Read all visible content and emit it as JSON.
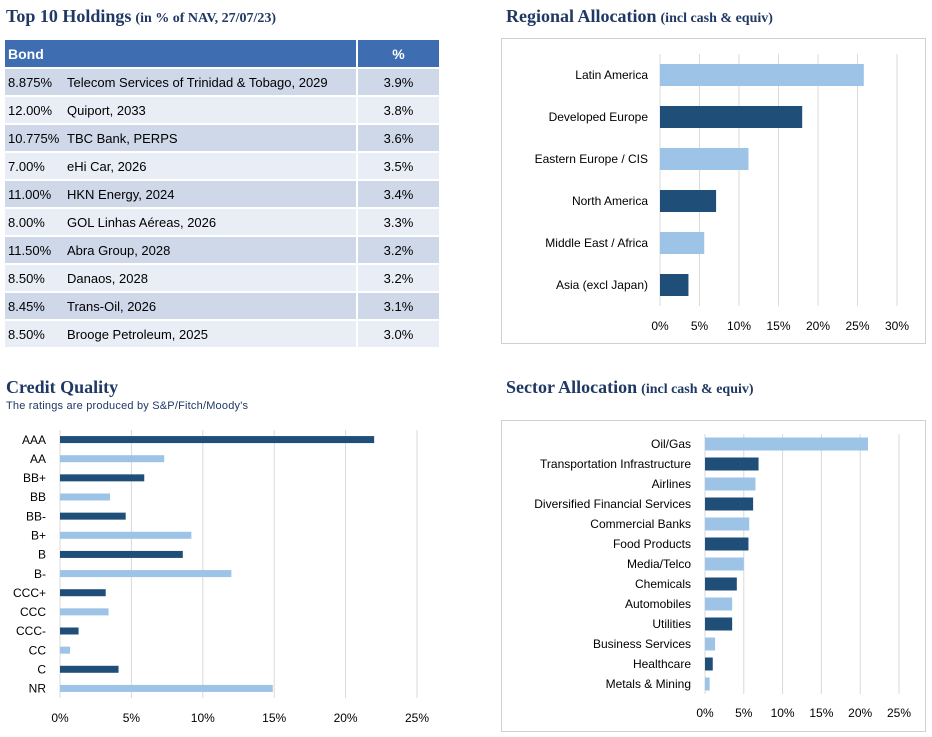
{
  "holdings": {
    "title": "Top 10 Holdings",
    "subtitle": "(in % of NAV, 27/07/23)",
    "header_bond": "Bond",
    "header_pct": "%",
    "rows": [
      {
        "rate": "8.875%",
        "name": "Telecom Services of Trinidad & Tobago, 2029",
        "pct": "3.9%"
      },
      {
        "rate": "12.00%",
        "name": "Quiport, 2033",
        "pct": "3.8%"
      },
      {
        "rate": "10.775%",
        "name": "TBC Bank, PERPS",
        "pct": "3.6%"
      },
      {
        "rate": "7.00%",
        "name": "eHi Car, 2026",
        "pct": "3.5%"
      },
      {
        "rate": "11.00%",
        "name": "HKN Energy, 2024",
        "pct": "3.4%"
      },
      {
        "rate": "8.00%",
        "name": "GOL Linhas Aéreas, 2026",
        "pct": "3.3%"
      },
      {
        "rate": "11.50%",
        "name": "Abra Group, 2028",
        "pct": "3.2%"
      },
      {
        "rate": "8.50%",
        "name": "Danaos, 2028",
        "pct": "3.2%"
      },
      {
        "rate": "8.45%",
        "name": "Trans-Oil, 2026",
        "pct": "3.1%"
      },
      {
        "rate": "8.50%",
        "name": "Brooge Petroleum, 2025",
        "pct": "3.0%"
      }
    ]
  },
  "regional": {
    "title": "Regional Allocation",
    "subtitle": "(incl cash & equiv)"
  },
  "credit": {
    "title": "Credit Quality",
    "note": "The ratings are produced by S&P/Fitch/Moody's"
  },
  "sector": {
    "title": "Sector Allocation",
    "subtitle": "(incl cash & equiv)"
  },
  "colors": {
    "title": "#1f3864",
    "light_bar": "#9dc3e6",
    "dark_bar": "#1f4e79",
    "table_header": "#3f6db1",
    "grid": "#d9d9d9"
  },
  "chart_data": [
    {
      "id": "regional",
      "type": "bar",
      "orientation": "horizontal",
      "categories": [
        "Latin America",
        "Developed Europe",
        "Eastern Europe / CIS",
        "North America",
        "Middle East / Africa",
        "Asia (excl Japan)"
      ],
      "values": [
        25.8,
        18.0,
        11.2,
        7.1,
        5.6,
        3.6
      ],
      "xlim": [
        0,
        30
      ],
      "xticks": [
        "0%",
        "5%",
        "10%",
        "15%",
        "20%",
        "25%",
        "30%"
      ],
      "grid": true,
      "colors": [
        "#9dc3e6",
        "#1f4e79",
        "#9dc3e6",
        "#1f4e79",
        "#9dc3e6",
        "#1f4e79"
      ]
    },
    {
      "id": "credit",
      "type": "bar",
      "orientation": "horizontal",
      "categories": [
        "AAA",
        "AA",
        "BB+",
        "BB",
        "BB-",
        "B+",
        "B",
        "B-",
        "CCC+",
        "CCC",
        "CCC-",
        "CC",
        "C",
        "NR"
      ],
      "values": [
        22.0,
        7.3,
        5.9,
        3.5,
        4.6,
        9.2,
        8.6,
        12.0,
        3.2,
        3.4,
        1.3,
        0.7,
        4.1,
        14.9
      ],
      "xlim": [
        0,
        25
      ],
      "xticks": [
        "0%",
        "5%",
        "10%",
        "15%",
        "20%",
        "25%"
      ],
      "grid": true,
      "colors": [
        "#1f4e79",
        "#9dc3e6",
        "#1f4e79",
        "#9dc3e6",
        "#1f4e79",
        "#9dc3e6",
        "#1f4e79",
        "#9dc3e6",
        "#1f4e79",
        "#9dc3e6",
        "#1f4e79",
        "#9dc3e6",
        "#1f4e79",
        "#9dc3e6"
      ]
    },
    {
      "id": "sector",
      "type": "bar",
      "orientation": "horizontal",
      "categories": [
        "Oil/Gas",
        "Transportation Infrastructure",
        "Airlines",
        "Diversified Financial Services",
        "Commercial Banks",
        "Food Products",
        "Media/Telco",
        "Chemicals",
        "Automobiles",
        "Utilities",
        "Business Services",
        "Healthcare",
        "Metals & Mining"
      ],
      "values": [
        21.0,
        6.9,
        6.5,
        6.2,
        5.7,
        5.6,
        5.0,
        4.1,
        3.5,
        3.5,
        1.3,
        1.0,
        0.6
      ],
      "xlim": [
        0,
        25
      ],
      "xticks": [
        "0%",
        "5%",
        "10%",
        "15%",
        "20%",
        "25%"
      ],
      "grid": true,
      "colors": [
        "#9dc3e6",
        "#1f4e79",
        "#9dc3e6",
        "#1f4e79",
        "#9dc3e6",
        "#1f4e79",
        "#9dc3e6",
        "#1f4e79",
        "#9dc3e6",
        "#1f4e79",
        "#9dc3e6",
        "#1f4e79",
        "#9dc3e6"
      ]
    }
  ]
}
